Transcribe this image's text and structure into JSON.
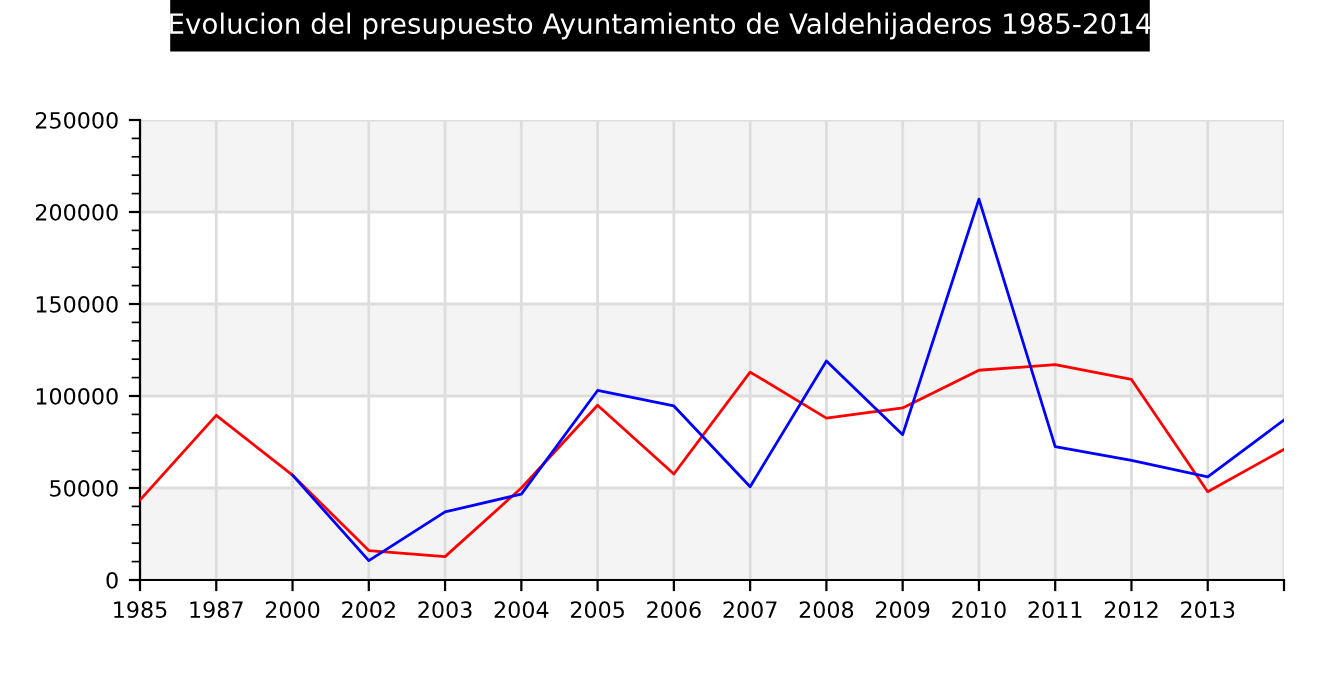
{
  "chart_data": {
    "type": "line",
    "title": "Evolucion del presupuesto Ayuntamiento de Valdehijaderos 1985-2014",
    "categories": [
      "1985",
      "1987",
      "2000",
      "2002",
      "2003",
      "2004",
      "2005",
      "2006",
      "2007",
      "2008",
      "2009",
      "2010",
      "2011",
      "2012",
      "2013",
      null
    ],
    "series": [
      {
        "color": "#ff0000",
        "values": [
          43500,
          89500,
          57000,
          16000,
          12700,
          50000,
          95000,
          57600,
          113000,
          88000,
          93500,
          114000,
          117000,
          109000,
          48000,
          71000
        ]
      },
      {
        "color": "#0000ff",
        "values": [
          null,
          null,
          57000,
          10500,
          37000,
          46700,
          103000,
          94600,
          50700,
          119000,
          79000,
          207000,
          72500,
          65000,
          56000,
          87000
        ]
      }
    ],
    "ylim": [
      0,
      250000
    ],
    "yticks": [
      0,
      50000,
      100000,
      150000,
      200000,
      250000
    ],
    "grid": true,
    "marker": "none",
    "line_style": "solid"
  }
}
